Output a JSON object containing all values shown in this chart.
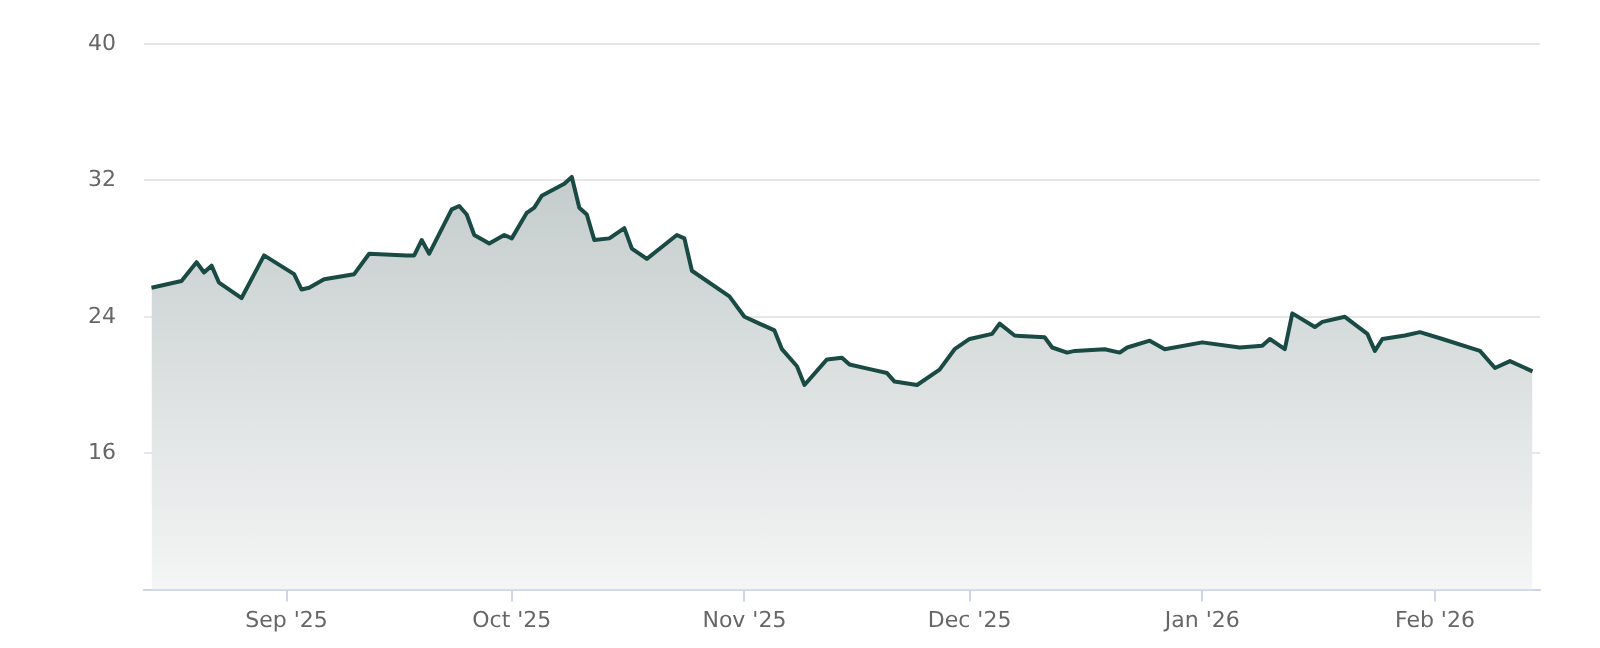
{
  "chart_data": {
    "type": "area",
    "x": [
      "2025-08-14",
      "2025-08-18",
      "2025-08-20",
      "2025-08-21",
      "2025-08-22",
      "2025-08-23",
      "2025-08-26",
      "2025-08-29",
      "2025-09-02",
      "2025-09-03",
      "2025-09-04",
      "2025-09-06",
      "2025-09-10",
      "2025-09-12",
      "2025-09-17",
      "2025-09-18",
      "2025-09-19",
      "2025-09-20",
      "2025-09-23",
      "2025-09-24",
      "2025-09-25",
      "2025-09-26",
      "2025-09-28",
      "2025-09-30",
      "2025-10-01",
      "2025-10-03",
      "2025-10-04",
      "2025-10-05",
      "2025-10-08",
      "2025-10-09",
      "2025-10-10",
      "2025-10-11",
      "2025-10-12",
      "2025-10-14",
      "2025-10-16",
      "2025-10-17",
      "2025-10-19",
      "2025-10-23",
      "2025-10-24",
      "2025-10-25",
      "2025-10-30",
      "2025-11-01",
      "2025-11-03",
      "2025-11-05",
      "2025-11-06",
      "2025-11-08",
      "2025-11-09",
      "2025-11-12",
      "2025-11-14",
      "2025-11-15",
      "2025-11-18",
      "2025-11-20",
      "2025-11-21",
      "2025-11-24",
      "2025-11-27",
      "2025-11-29",
      "2025-12-01",
      "2025-12-04",
      "2025-12-05",
      "2025-12-07",
      "2025-12-11",
      "2025-12-12",
      "2025-12-14",
      "2025-12-15",
      "2025-12-19",
      "2025-12-21",
      "2025-12-22",
      "2025-12-25",
      "2025-12-27",
      "2026-01-01",
      "2026-01-06",
      "2026-01-09",
      "2026-01-10",
      "2026-01-12",
      "2026-01-13",
      "2026-01-16",
      "2026-01-17",
      "2026-01-20",
      "2026-01-23",
      "2026-01-24",
      "2026-01-25",
      "2026-01-28",
      "2026-01-30",
      "2026-02-02",
      "2026-02-07",
      "2026-02-09",
      "2026-02-11",
      "2026-02-14"
    ],
    "series": [
      {
        "color": "#1a4a44",
        "values": [
          25.7,
          26.1,
          27.2,
          26.6,
          27.0,
          26.0,
          25.1,
          27.6,
          26.5,
          25.6,
          25.7,
          26.2,
          26.5,
          27.7,
          27.6,
          27.6,
          28.5,
          27.7,
          30.3,
          30.5,
          30.0,
          28.8,
          28.3,
          28.8,
          28.6,
          30.1,
          30.4,
          31.1,
          31.8,
          32.2,
          30.4,
          30.0,
          28.5,
          28.6,
          29.2,
          28.0,
          27.4,
          28.8,
          28.6,
          26.7,
          25.2,
          24.0,
          23.6,
          23.2,
          22.1,
          21.1,
          20.0,
          21.5,
          21.6,
          21.2,
          20.9,
          20.7,
          20.2,
          20.0,
          20.9,
          22.1,
          22.7,
          23.0,
          23.6,
          22.9,
          22.8,
          22.2,
          21.9,
          22.0,
          22.1,
          21.9,
          22.2,
          22.6,
          22.1,
          22.5,
          22.2,
          22.3,
          22.7,
          22.1,
          24.2,
          23.4,
          23.7,
          24.0,
          23.0,
          22.0,
          22.7,
          22.9,
          23.1,
          22.7,
          22.0,
          21.0,
          21.4,
          20.8
        ]
      }
    ],
    "xlim": [
      "2025-08-13",
      "2026-02-15"
    ],
    "xticks": [
      {
        "value": "2025-09-01",
        "label": "Sep '25"
      },
      {
        "value": "2025-10-01",
        "label": "Oct '25"
      },
      {
        "value": "2025-11-01",
        "label": "Nov '25"
      },
      {
        "value": "2025-12-01",
        "label": "Dec '25"
      },
      {
        "value": "2026-01-01",
        "label": "Jan '26"
      },
      {
        "value": "2026-02-01",
        "label": "Feb '26"
      }
    ],
    "ylim": [
      8,
      40
    ],
    "yticks": [
      16,
      24,
      32,
      40
    ],
    "grid": "y",
    "legend": false
  }
}
